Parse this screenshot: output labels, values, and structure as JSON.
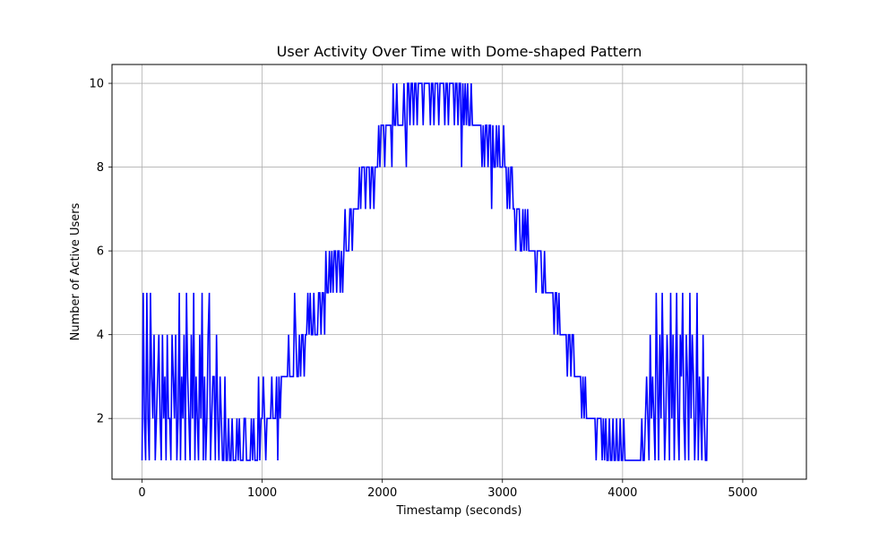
{
  "chart_data": {
    "type": "line",
    "title": "User Activity Over Time with Dome-shaped Pattern",
    "xlabel": "Timestamp (seconds)",
    "ylabel": "Number of Active Users",
    "xlim": [
      -250,
      5530
    ],
    "ylim": [
      0.55,
      10.45
    ],
    "x_ticks": [
      0,
      1000,
      2000,
      3000,
      4000,
      5000
    ],
    "y_ticks": [
      2,
      4,
      6,
      8,
      10
    ],
    "grid": true,
    "line_color": "#0000ff",
    "grid_color": "#b0b0b0",
    "series": [
      {
        "name": "",
        "x_start": 0,
        "x_step": 10,
        "y": [
          1,
          5,
          2,
          1,
          5,
          2,
          1,
          5,
          3,
          2,
          4,
          1,
          2,
          3,
          4,
          2,
          1,
          4,
          2,
          3,
          1,
          4,
          2,
          2,
          1,
          4,
          3,
          2,
          4,
          1,
          2,
          5,
          1,
          3,
          2,
          4,
          1,
          5,
          3,
          2,
          1,
          4,
          2,
          5,
          1,
          3,
          2,
          1,
          4,
          2,
          5,
          1,
          3,
          1,
          2,
          4,
          5,
          1,
          2,
          3,
          3,
          1,
          4,
          2,
          1,
          3,
          2,
          1,
          1,
          3,
          1,
          1,
          2,
          1,
          1,
          2,
          1,
          1,
          1,
          2,
          1,
          2,
          1,
          1,
          1,
          2,
          2,
          1,
          1,
          1,
          1,
          2,
          1,
          2,
          1,
          1,
          1,
          3,
          1,
          2,
          2,
          3,
          2,
          1,
          2,
          2,
          2,
          2,
          3,
          2,
          2,
          2,
          3,
          1,
          3,
          2,
          3,
          3,
          3,
          3,
          3,
          3,
          4,
          3,
          3,
          3,
          3,
          5,
          4,
          3,
          3,
          4,
          3,
          4,
          4,
          3,
          4,
          4,
          5,
          4,
          5,
          4,
          4,
          5,
          4,
          4,
          4,
          5,
          5,
          4,
          5,
          5,
          4,
          6,
          5,
          5,
          6,
          5,
          6,
          5,
          6,
          6,
          5,
          6,
          6,
          5,
          6,
          5,
          6,
          7,
          6,
          6,
          6,
          7,
          7,
          6,
          7,
          7,
          7,
          7,
          7,
          8,
          7,
          8,
          8,
          8,
          7,
          8,
          8,
          8,
          7,
          8,
          8,
          7,
          8,
          8,
          8,
          9,
          8,
          9,
          9,
          9,
          8,
          9,
          9,
          9,
          9,
          9,
          8,
          10,
          9,
          9,
          10,
          9,
          9,
          9,
          9,
          9,
          10,
          9,
          8,
          10,
          10,
          9,
          10,
          10,
          9,
          10,
          10,
          9,
          10,
          10,
          10,
          10,
          9,
          10,
          10,
          10,
          10,
          10,
          9,
          10,
          10,
          9,
          10,
          10,
          10,
          9,
          10,
          10,
          10,
          10,
          9,
          10,
          10,
          9,
          10,
          10,
          10,
          10,
          9,
          10,
          10,
          9,
          10,
          10,
          8,
          10,
          9,
          10,
          9,
          10,
          9,
          9,
          10,
          9,
          9,
          9,
          9,
          9,
          9,
          9,
          9,
          8,
          9,
          8,
          9,
          9,
          8,
          9,
          9,
          7,
          9,
          8,
          8,
          9,
          8,
          9,
          8,
          8,
          8,
          9,
          8,
          8,
          7,
          8,
          7,
          8,
          8,
          7,
          7,
          6,
          7,
          7,
          7,
          6,
          6,
          7,
          6,
          7,
          6,
          7,
          6,
          6,
          6,
          6,
          6,
          6,
          5,
          6,
          6,
          6,
          6,
          5,
          5,
          6,
          5,
          5,
          5,
          5,
          5,
          5,
          5,
          4,
          5,
          5,
          4,
          5,
          4,
          4,
          4,
          4,
          4,
          4,
          3,
          4,
          4,
          3,
          4,
          4,
          3,
          3,
          3,
          3,
          3,
          3,
          2,
          3,
          2,
          3,
          2,
          2,
          2,
          2,
          2,
          2,
          2,
          2,
          1,
          2,
          2,
          2,
          2,
          1,
          2,
          1,
          2,
          1,
          1,
          2,
          1,
          1,
          2,
          1,
          1,
          2,
          1,
          1,
          2,
          1,
          1,
          2,
          1,
          1,
          1,
          1,
          1,
          1,
          1,
          1,
          1,
          1,
          1,
          1,
          1,
          1,
          2,
          1,
          1,
          2,
          3,
          2,
          1,
          4,
          2,
          3,
          2,
          1,
          5,
          3,
          1,
          4,
          2,
          5,
          3,
          1,
          2,
          4,
          3,
          1,
          5,
          2,
          4,
          1,
          3,
          5,
          2,
          1,
          4,
          3,
          5,
          2,
          1,
          4,
          3,
          1,
          5,
          2,
          4,
          3,
          1,
          2,
          5,
          1,
          3,
          2,
          1,
          4,
          2,
          1,
          1,
          3
        ]
      }
    ]
  }
}
